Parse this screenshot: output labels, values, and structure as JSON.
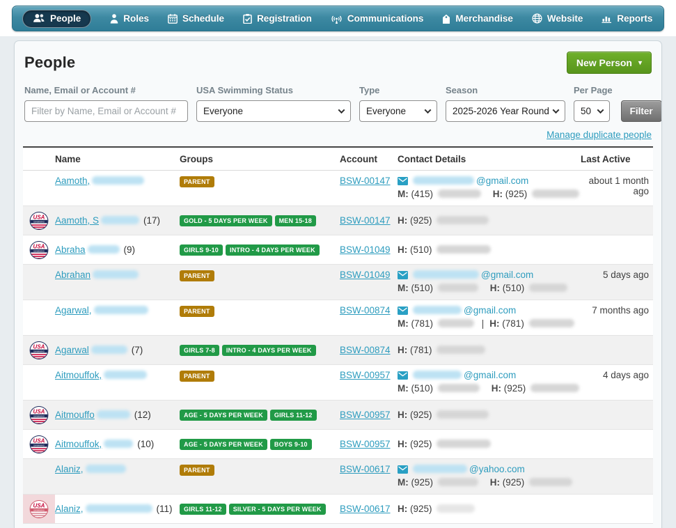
{
  "nav": {
    "items": [
      {
        "label": "People",
        "icon": "people-icon",
        "active": true
      },
      {
        "label": "Roles",
        "icon": "roles-icon",
        "active": false
      },
      {
        "label": "Schedule",
        "icon": "schedule-icon",
        "active": false
      },
      {
        "label": "Registration",
        "icon": "registration-icon",
        "active": false
      },
      {
        "label": "Communications",
        "icon": "communications-icon",
        "active": false
      },
      {
        "label": "Merchandise",
        "icon": "merchandise-icon",
        "active": false
      },
      {
        "label": "Website",
        "icon": "website-icon",
        "active": false
      },
      {
        "label": "Reports",
        "icon": "reports-icon",
        "active": false
      }
    ]
  },
  "header": {
    "title": "People",
    "new_person_label": "New Person"
  },
  "filters": {
    "name_label": "Name, Email or Account #",
    "name_placeholder": "Filter by Name, Email or Account #",
    "name_value": "",
    "status_label": "USA Swimming Status",
    "status_value": "Everyone",
    "type_label": "Type",
    "type_value": "Everyone",
    "season_label": "Season",
    "season_value": "2025-2026 Year Round",
    "per_page_label": "Per Page",
    "per_page_value": "50",
    "filter_button": "Filter",
    "manage_link": "Manage duplicate people"
  },
  "colors": {
    "badge_gold": "#b07c08",
    "badge_green": "#219a47",
    "link": "#2d9cbe",
    "nav_bg": "#3d89a2",
    "new_person_green": "#61a519"
  },
  "table": {
    "columns": [
      "Name",
      "Groups",
      "Account",
      "Contact Details",
      "Last Active"
    ],
    "rows": [
      {
        "logo": null,
        "name": {
          "prefix": "Aamoth,",
          "blur": 75,
          "count": ""
        },
        "groups": [
          {
            "label": "PARENT",
            "color": "gold"
          }
        ],
        "account": "BSW-00147",
        "email": {
          "blur": 88,
          "domain": "@gmail.com"
        },
        "phones": [
          {
            "label": "M:",
            "area": "(415)",
            "blur": 62
          },
          {
            "label": "H:",
            "area": "(925)",
            "blur": 68
          }
        ],
        "last_active": "about 1 month ago"
      },
      {
        "logo": "usa",
        "name": {
          "prefix": "Aamoth, S",
          "blur": 55,
          "count": "(17)"
        },
        "groups": [
          {
            "label": "GOLD - 5 DAYS PER WEEK",
            "color": "green"
          },
          {
            "label": "MEN 15-18",
            "color": "green"
          }
        ],
        "account": "BSW-00147",
        "email": null,
        "phones": [
          {
            "label": "H:",
            "area": "(925)",
            "blur": 75
          }
        ],
        "last_active": ""
      },
      {
        "logo": "usa",
        "name": {
          "prefix": "Abraha",
          "blur": 46,
          "count": "(9)"
        },
        "groups": [
          {
            "label": "GIRLS 9-10",
            "color": "green"
          },
          {
            "label": "INTRO - 4 DAYS PER WEEK",
            "color": "green"
          }
        ],
        "account": "BSW-01049",
        "email": null,
        "phones": [
          {
            "label": "H:",
            "area": "(510)",
            "blur": 78
          }
        ],
        "last_active": ""
      },
      {
        "logo": null,
        "name": {
          "prefix": "Abrahan",
          "blur": 66,
          "count": ""
        },
        "groups": [
          {
            "label": "PARENT",
            "color": "gold"
          }
        ],
        "account": "BSW-01049",
        "email": {
          "blur": 95,
          "domain": "@gmail.com"
        },
        "phones": [
          {
            "label": "M:",
            "area": "(510)",
            "blur": 58
          },
          {
            "label": "H:",
            "area": "(510)",
            "blur": 55
          }
        ],
        "last_active": "5 days ago"
      },
      {
        "logo": null,
        "name": {
          "prefix": "Agarwal,",
          "blur": 78,
          "count": ""
        },
        "groups": [
          {
            "label": "PARENT",
            "color": "gold"
          }
        ],
        "account": "BSW-00874",
        "email": {
          "blur": 70,
          "domain": "@gmail.com"
        },
        "phones": [
          {
            "label": "M:",
            "area": "(781)",
            "blur": 52
          },
          {
            "label": "H:",
            "area": "(781)",
            "blur": 65,
            "sep": true
          }
        ],
        "last_active": "7 months ago"
      },
      {
        "logo": "usa",
        "name": {
          "prefix": "Agarwal",
          "blur": 52,
          "count": "(7)"
        },
        "groups": [
          {
            "label": "GIRLS 7-8",
            "color": "green"
          },
          {
            "label": "INTRO - 4 DAYS PER WEEK",
            "color": "green"
          }
        ],
        "account": "BSW-00874",
        "email": null,
        "phones": [
          {
            "label": "H:",
            "area": "(781)",
            "blur": 70
          }
        ],
        "last_active": ""
      },
      {
        "logo": null,
        "name": {
          "prefix": "Aitmouffok,",
          "blur": 62,
          "count": ""
        },
        "groups": [
          {
            "label": "PARENT",
            "color": "gold"
          }
        ],
        "account": "BSW-00957",
        "email": {
          "blur": 70,
          "domain": "@gmail.com"
        },
        "phones": [
          {
            "label": "M:",
            "area": "(510)",
            "blur": 60
          },
          {
            "label": "H:",
            "area": "(925)",
            "blur": 70
          }
        ],
        "last_active": "4 days ago"
      },
      {
        "logo": "usa",
        "name": {
          "prefix": "Aitmouffo",
          "blur": 48,
          "count": "(12)"
        },
        "groups": [
          {
            "label": "AGE - 5 DAYS PER WEEK",
            "color": "green"
          },
          {
            "label": "GIRLS 11-12",
            "color": "green"
          }
        ],
        "account": "BSW-00957",
        "email": null,
        "phones": [
          {
            "label": "H:",
            "area": "(925)",
            "blur": 75
          }
        ],
        "last_active": ""
      },
      {
        "logo": "usa",
        "name": {
          "prefix": "Aitmouffok,",
          "blur": 42,
          "count": "(10)"
        },
        "groups": [
          {
            "label": "AGE - 5 DAYS PER WEEK",
            "color": "green"
          },
          {
            "label": "BOYS 9-10",
            "color": "green"
          }
        ],
        "account": "BSW-00957",
        "email": null,
        "phones": [
          {
            "label": "H:",
            "area": "(925)",
            "blur": 78
          }
        ],
        "last_active": ""
      },
      {
        "logo": null,
        "name": {
          "prefix": "Alaniz,",
          "blur": 58,
          "count": ""
        },
        "groups": [
          {
            "label": "PARENT",
            "color": "gold"
          }
        ],
        "account": "BSW-00617",
        "email": {
          "blur": 78,
          "domain": "@yahoo.com"
        },
        "phones": [
          {
            "label": "M:",
            "area": "(925)",
            "blur": 58
          },
          {
            "label": "H:",
            "area": "(925)",
            "blur": 62
          }
        ],
        "last_active": ""
      },
      {
        "logo": "usa-red",
        "name": {
          "prefix": "Alaniz,",
          "blur": 96,
          "count": "(11)"
        },
        "groups": [
          {
            "label": "GIRLS 11-12",
            "color": "green"
          },
          {
            "label": "SILVER - 5 DAYS PER WEEK",
            "color": "green"
          }
        ],
        "account": "BSW-00617",
        "email": null,
        "phones": [
          {
            "label": "H:",
            "area": "(925)",
            "blur": 55,
            "faint": true
          }
        ],
        "last_active": ""
      }
    ]
  }
}
